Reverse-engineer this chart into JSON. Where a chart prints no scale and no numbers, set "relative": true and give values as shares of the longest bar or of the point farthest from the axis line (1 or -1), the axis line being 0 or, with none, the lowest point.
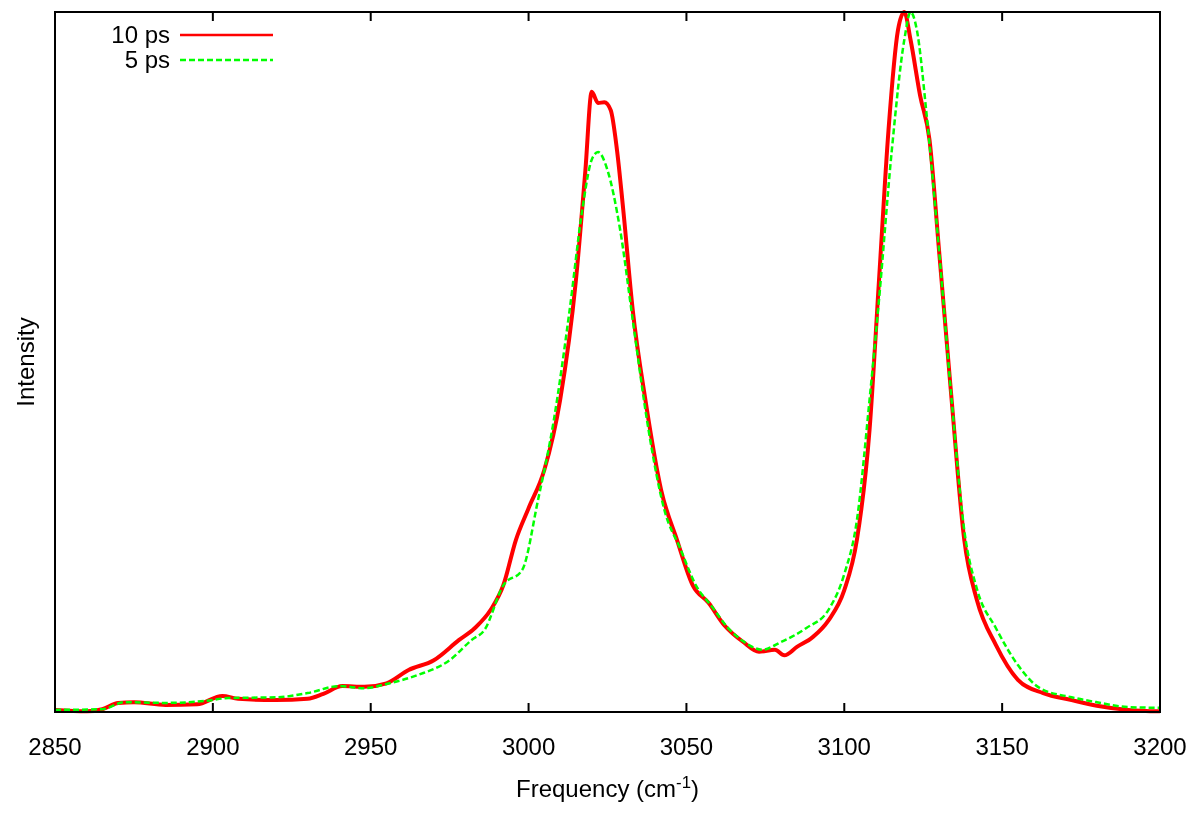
{
  "chart_data": {
    "type": "line",
    "relative": true,
    "xlabel": "Frequency (cm$^{-1}$)",
    "ylabel": "Intensity",
    "xlim": [
      2850,
      3200
    ],
    "xticks": [
      2850,
      2900,
      2950,
      3000,
      3050,
      3100,
      3150,
      3200
    ],
    "grid": false,
    "legend": "top left",
    "tick_labels": "x",
    "series": [
      {
        "name": "10 ps",
        "color": "#ff0000",
        "line_style": "solid",
        "x": [
          2850,
          2860,
          2865,
          2870,
          2875,
          2885,
          2895,
          2903,
          2908,
          2920,
          2930,
          2935,
          2941,
          2948,
          2955,
          2962,
          2970,
          2978,
          2983,
          2988,
          2992,
          2996,
          3000,
          3005,
          3010,
          3015,
          3018,
          3020,
          3022,
          3024,
          3026,
          3028,
          3030,
          3033,
          3037,
          3042,
          3047,
          3052,
          3057,
          3062,
          3068,
          3073,
          3078,
          3081,
          3085,
          3090,
          3095,
          3100,
          3104,
          3108,
          3111,
          3114,
          3117,
          3119,
          3121,
          3124,
          3127,
          3130,
          3134,
          3138,
          3142,
          3148,
          3155,
          3163,
          3172,
          3180,
          3190,
          3200
        ],
        "values": [
          0.003,
          0.001,
          0.004,
          0.013,
          0.014,
          0.01,
          0.011,
          0.023,
          0.019,
          0.017,
          0.019,
          0.026,
          0.037,
          0.036,
          0.041,
          0.06,
          0.074,
          0.103,
          0.12,
          0.146,
          0.181,
          0.246,
          0.291,
          0.346,
          0.446,
          0.617,
          0.774,
          0.886,
          0.87,
          0.871,
          0.86,
          0.803,
          0.717,
          0.574,
          0.446,
          0.317,
          0.246,
          0.181,
          0.156,
          0.124,
          0.1,
          0.086,
          0.089,
          0.081,
          0.093,
          0.107,
          0.131,
          0.174,
          0.246,
          0.403,
          0.617,
          0.831,
          0.974,
          1,
          0.96,
          0.881,
          0.817,
          0.66,
          0.446,
          0.246,
          0.16,
          0.096,
          0.046,
          0.027,
          0.017,
          0.009,
          0.003,
          0.001
        ]
      },
      {
        "name": "5 ps",
        "color": "#00ff00",
        "line_style": "dashed",
        "x": [
          2850,
          2865,
          2872,
          2885,
          2898,
          2905,
          2920,
          2930,
          2940,
          2948,
          2955,
          2965,
          2975,
          2982,
          2986,
          2992,
          2998,
          3003,
          3008,
          3013,
          3017,
          3020,
          3022,
          3025,
          3029,
          3033,
          3038,
          3043,
          3048,
          3053,
          3058,
          3063,
          3068,
          3074,
          3080,
          3088,
          3095,
          3100,
          3104,
          3108,
          3111,
          3115,
          3119,
          3121,
          3123,
          3126,
          3130,
          3134,
          3138,
          3142,
          3148,
          3155,
          3162,
          3172,
          3180,
          3190,
          3200
        ],
        "values": [
          0.003,
          0.004,
          0.014,
          0.013,
          0.016,
          0.02,
          0.021,
          0.027,
          0.037,
          0.034,
          0.04,
          0.053,
          0.074,
          0.103,
          0.117,
          0.181,
          0.203,
          0.303,
          0.417,
          0.574,
          0.717,
          0.789,
          0.8,
          0.774,
          0.689,
          0.56,
          0.403,
          0.289,
          0.234,
          0.181,
          0.151,
          0.121,
          0.101,
          0.089,
          0.1,
          0.12,
          0.146,
          0.197,
          0.274,
          0.446,
          0.589,
          0.8,
          0.96,
          1,
          0.974,
          0.857,
          0.66,
          0.446,
          0.26,
          0.176,
          0.12,
          0.067,
          0.034,
          0.021,
          0.014,
          0.007,
          0.006
        ]
      }
    ]
  }
}
